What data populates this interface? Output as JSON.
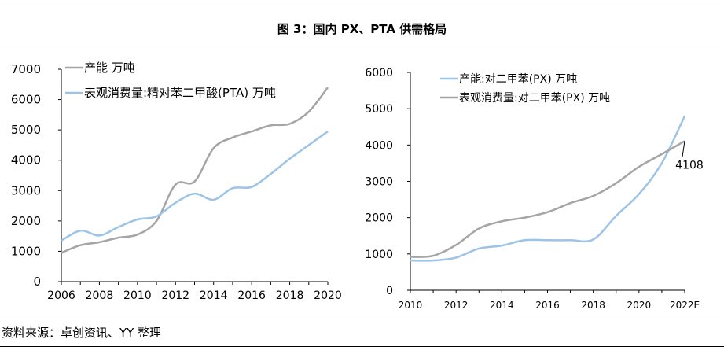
{
  "figure": {
    "title": "图 3：国内 PX、PTA 供需格局",
    "source": "资料来源：卓创资讯、YY 整理"
  },
  "colors": {
    "gray": "#a5a5a5",
    "blue": "#9dc3e6"
  },
  "chart_data": [
    {
      "type": "line",
      "x": [
        2006,
        2007,
        2008,
        2009,
        2010,
        2011,
        2012,
        2013,
        2014,
        2015,
        2016,
        2017,
        2018,
        2019,
        2020
      ],
      "xticks": [
        "2006",
        "2008",
        "2010",
        "2012",
        "2014",
        "2016",
        "2018",
        "2020"
      ],
      "yticks": [
        "0",
        "1000",
        "2000",
        "3000",
        "4000",
        "5000",
        "6000",
        "7000"
      ],
      "xlim": [
        2006,
        2020
      ],
      "ylim": [
        0,
        7000
      ],
      "legend_position": "top-left",
      "series": [
        {
          "name": "产能  万吨",
          "color": "#a5a5a5",
          "values": [
            950,
            1200,
            1300,
            1450,
            1550,
            2000,
            3200,
            3300,
            4400,
            4750,
            4950,
            5150,
            5200,
            5600,
            6400
          ]
        },
        {
          "name": "表观消费量:精对苯二甲酸(PTA)  万吨",
          "color": "#9dc3e6",
          "values": [
            1350,
            1680,
            1520,
            1800,
            2050,
            2150,
            2600,
            2900,
            2700,
            3080,
            3120,
            3550,
            4050,
            4500,
            4950
          ]
        }
      ]
    },
    {
      "type": "line",
      "x": [
        2010,
        2011,
        2012,
        2013,
        2014,
        2015,
        2016,
        2017,
        2018,
        2019,
        2020,
        2021,
        2022
      ],
      "xticks": [
        "2010",
        "2012",
        "2014",
        "2016",
        "2018",
        "2020",
        "2022E"
      ],
      "yticks": [
        "0",
        "1000",
        "2000",
        "3000",
        "4000",
        "5000",
        "6000"
      ],
      "xlim": [
        2010,
        2022
      ],
      "ylim": [
        0,
        6000
      ],
      "legend_position": "top-left",
      "series": [
        {
          "name": "产能:对二甲苯(PX)  万吨",
          "color": "#9dc3e6",
          "values": [
            820,
            820,
            900,
            1150,
            1230,
            1380,
            1380,
            1380,
            1400,
            2050,
            2650,
            3500,
            4800
          ]
        },
        {
          "name": "表观消费量:对二甲苯(PX)  万吨",
          "color": "#a5a5a5",
          "values": [
            920,
            950,
            1250,
            1700,
            1900,
            2000,
            2150,
            2400,
            2600,
            2950,
            3400,
            3750,
            4108
          ]
        }
      ],
      "annotations": [
        {
          "text": "4108"
        }
      ]
    }
  ]
}
